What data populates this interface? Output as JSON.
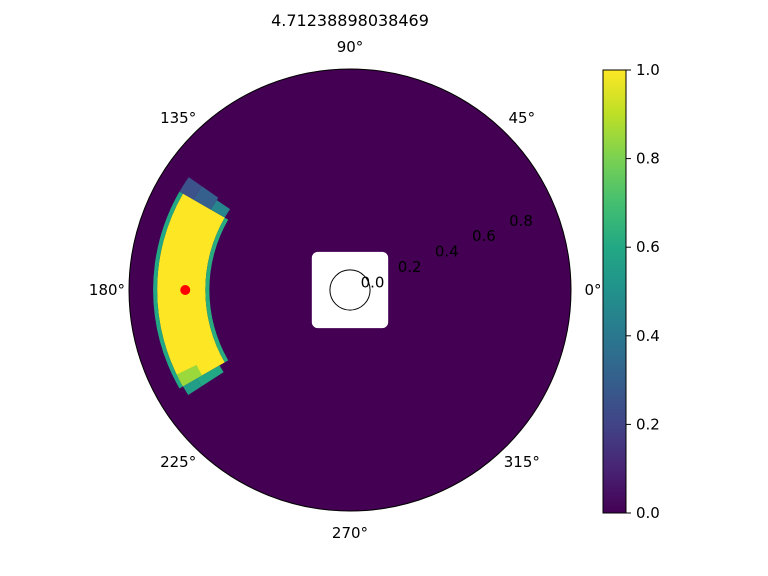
{
  "chart_data": {
    "type": "heatmap",
    "projection": "polar",
    "title": "4.71238898038469",
    "angular_tick_labels": [
      "0°",
      "45°",
      "90°",
      "135°",
      "180°",
      "225°",
      "270°",
      "315°"
    ],
    "angular_ticks_deg": [
      0,
      45,
      90,
      135,
      180,
      225,
      270,
      315
    ],
    "radial_tick_labels": [
      "0.0",
      "0.2",
      "0.4",
      "0.6",
      "0.8"
    ],
    "radial_ticks": [
      0.0,
      0.2,
      0.4,
      0.6,
      0.8
    ],
    "rlim": [
      -0.1,
      1.0
    ],
    "radial_label_angle_deg": 22.5,
    "colormap": "viridis",
    "clim": [
      0,
      1
    ],
    "background_value": 0,
    "regions": [
      {
        "r": [
          0.62,
          0.86
        ],
        "theta_deg": [
          150,
          210
        ],
        "value": 1.0
      },
      {
        "r": [
          0.6,
          0.62
        ],
        "theta_deg": [
          150,
          210
        ],
        "value": 0.62
      },
      {
        "r": [
          0.86,
          0.88
        ],
        "theta_deg": [
          150,
          210
        ],
        "value": 0.6
      },
      {
        "r": [
          0.8,
          0.88
        ],
        "theta_deg": [
          145,
          150
        ],
        "value": 0.25
      },
      {
        "r": [
          0.7,
          0.8
        ],
        "theta_deg": [
          145,
          150
        ],
        "value": 0.3
      },
      {
        "r": [
          0.62,
          0.7
        ],
        "theta_deg": [
          146,
          150
        ],
        "value": 0.45
      },
      {
        "r": [
          0.75,
          0.86
        ],
        "theta_deg": [
          206,
          210
        ],
        "value": 0.85
      },
      {
        "r": [
          0.78,
          0.86
        ],
        "theta_deg": [
          210,
          213
        ],
        "value": 0.55
      },
      {
        "r": [
          0.65,
          0.78
        ],
        "theta_deg": [
          210,
          213
        ],
        "value": 0.6
      }
    ],
    "blank_center_r": 0.09,
    "center_circle_r": 0.0,
    "marker": {
      "theta_deg": 180,
      "r": 0.72,
      "color": "#ff0000"
    },
    "colorbar": {
      "ticks": [
        0.0,
        0.2,
        0.4,
        0.6,
        0.8,
        1.0
      ],
      "tick_labels": [
        "0.0",
        "0.2",
        "0.4",
        "0.6",
        "0.8",
        "1.0"
      ]
    }
  }
}
